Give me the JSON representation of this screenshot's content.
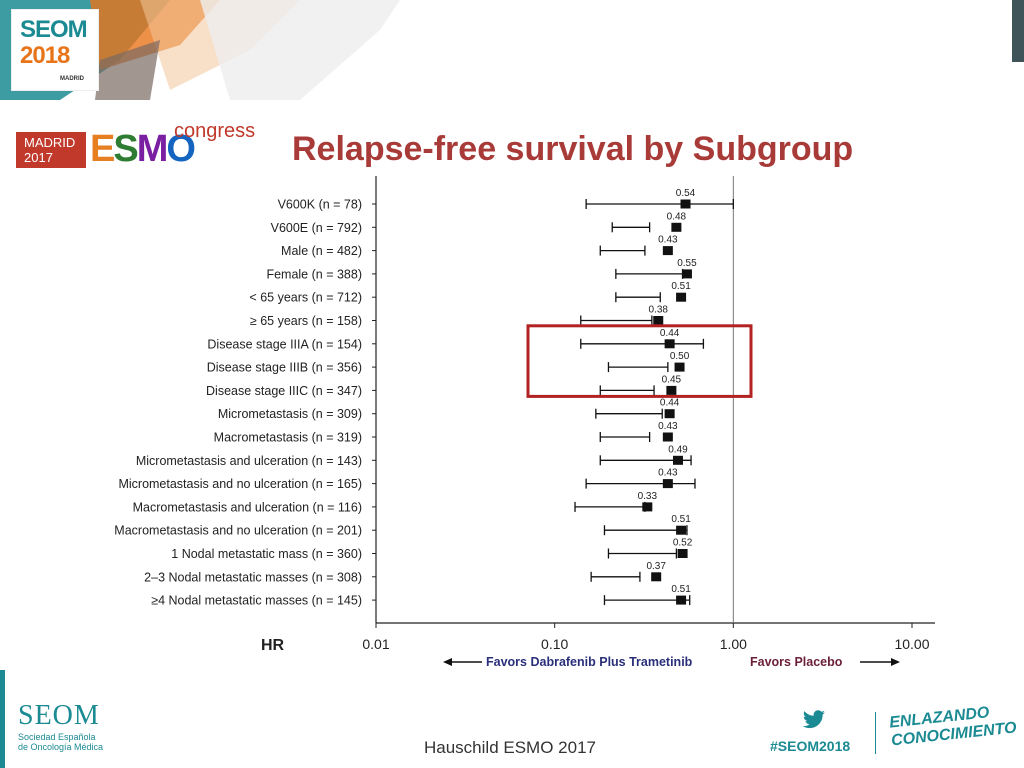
{
  "header": {
    "seom_logo": {
      "line1": "SEOM",
      "line2": "2018",
      "line3": "MADRID"
    },
    "esmo_logo": {
      "badge_line1": "MADRID",
      "badge_line2": "2017",
      "wordmark": "ESMO",
      "suffix": "congress"
    },
    "title": "Relapse-free survival by Subgroup"
  },
  "chart_data": {
    "type": "forest",
    "title": "",
    "xlabel": "HR",
    "x_scale": "log",
    "xlim": [
      0.01,
      10
    ],
    "x_ticks": [
      "0.01",
      "0.10",
      "1.00",
      "10.00"
    ],
    "x_tick_values": [
      0.01,
      0.1,
      1,
      10
    ],
    "reference_line": 1.0,
    "favors_left": "Favors Dabrafenib Plus Trametinib",
    "favors_right": "Favors Placebo",
    "colors": {
      "left_label": "#2a2f7a",
      "right_label": "#6b1f3a",
      "highlight_box": "#b22222"
    },
    "highlighted_rows": [
      "Disease stage IIIA (n = 154)",
      "Disease stage IIIB (n = 356)",
      "Disease stage IIIC (n = 347)"
    ],
    "rows": [
      {
        "label": "V600K (n = 78)",
        "hr": 0.54,
        "hr_text": "0.54",
        "ci": [
          0.15,
          1.0
        ]
      },
      {
        "label": "V600E (n = 792)",
        "hr": 0.48,
        "hr_text": "0.48",
        "ci": [
          0.21,
          0.34
        ]
      },
      {
        "label": "Male (n = 482)",
        "hr": 0.43,
        "hr_text": "0.43",
        "ci": [
          0.18,
          0.32
        ]
      },
      {
        "label": "Female (n = 388)",
        "hr": 0.55,
        "hr_text": "0.55",
        "ci": [
          0.22,
          0.52
        ]
      },
      {
        "label": "< 65 years (n = 712)",
        "hr": 0.51,
        "hr_text": "0.51",
        "ci": [
          0.22,
          0.39
        ]
      },
      {
        "label": "≥ 65 years (n = 158)",
        "hr": 0.38,
        "hr_text": "0.38",
        "ci": [
          0.14,
          0.35
        ]
      },
      {
        "label": "Disease stage IIIA (n = 154)",
        "hr": 0.44,
        "hr_text": "0.44",
        "ci": [
          0.14,
          0.68
        ]
      },
      {
        "label": "Disease stage IIIB (n = 356)",
        "hr": 0.5,
        "hr_text": "0.50",
        "ci": [
          0.2,
          0.43
        ]
      },
      {
        "label": "Disease stage IIIC (n = 347)",
        "hr": 0.45,
        "hr_text": "0.45",
        "ci": [
          0.18,
          0.36
        ]
      },
      {
        "label": "Micrometastasis (n = 309)",
        "hr": 0.44,
        "hr_text": "0.44",
        "ci": [
          0.17,
          0.4
        ]
      },
      {
        "label": "Macrometastasis (n = 319)",
        "hr": 0.43,
        "hr_text": "0.43",
        "ci": [
          0.18,
          0.34
        ]
      },
      {
        "label": "Micrometastasis and ulceration (n = 143)",
        "hr": 0.49,
        "hr_text": "0.49",
        "ci": [
          0.18,
          0.58
        ]
      },
      {
        "label": "Micrometastasis and no ulceration (n = 165)",
        "hr": 0.43,
        "hr_text": "0.43",
        "ci": [
          0.15,
          0.61
        ]
      },
      {
        "label": "Macrometastasis and ulceration (n = 116)",
        "hr": 0.33,
        "hr_text": "0.33",
        "ci": [
          0.13,
          0.32
        ]
      },
      {
        "label": "Macrometastasis and no ulceration (n = 201)",
        "hr": 0.51,
        "hr_text": "0.51",
        "ci": [
          0.19,
          0.55
        ]
      },
      {
        "label": "1 Nodal metastatic mass (n = 360)",
        "hr": 0.52,
        "hr_text": "0.52",
        "ci": [
          0.2,
          0.48
        ]
      },
      {
        "label": "2–3 Nodal metastatic masses (n = 308)",
        "hr": 0.37,
        "hr_text": "0.37",
        "ci": [
          0.16,
          0.3
        ]
      },
      {
        "label": "≥4 Nodal metastatic masses (n = 145)",
        "hr": 0.51,
        "hr_text": "0.51",
        "ci": [
          0.19,
          0.57
        ]
      }
    ]
  },
  "footer": {
    "seom_wordmark": "SEOM",
    "seom_subtitle_line1": "Sociedad Española",
    "seom_subtitle_line2": "de Oncología Médica",
    "citation": "Hauschild ESMO 2017",
    "hashtag": "#SEOM2018",
    "slogan_line1": "ENLAZANDO",
    "slogan_line2": "CONOCIMIENTO"
  }
}
